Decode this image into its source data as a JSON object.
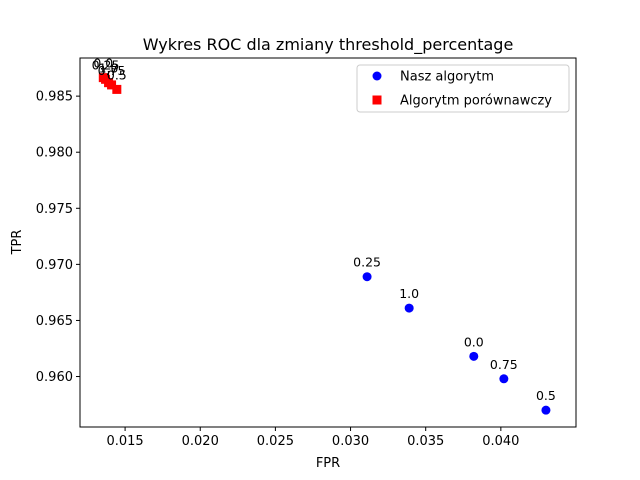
{
  "chart_data": {
    "type": "scatter",
    "title": "Wykres ROC dla zmiany threshold_percentage",
    "xlabel": "FPR",
    "ylabel": "TPR",
    "xlim": [
      0.012,
      0.045
    ],
    "ylim": [
      0.9555,
      0.9884
    ],
    "xticks": [
      0.015,
      0.02,
      0.025,
      0.03,
      0.035,
      0.04
    ],
    "xtick_labels": [
      "0.015",
      "0.020",
      "0.025",
      "0.030",
      "0.035",
      "0.040"
    ],
    "yticks": [
      0.96,
      0.965,
      0.97,
      0.975,
      0.98,
      0.985
    ],
    "ytick_labels": [
      "0.960",
      "0.965",
      "0.970",
      "0.975",
      "0.980",
      "0.985"
    ],
    "grid": false,
    "legend_position": "top-right",
    "series": [
      {
        "name": "Nasz algorytm",
        "marker": "circle",
        "color": "#0000ff",
        "points": [
          {
            "x": 0.0311,
            "y": 0.9689,
            "label": "0.25"
          },
          {
            "x": 0.0339,
            "y": 0.9661,
            "label": "1.0"
          },
          {
            "x": 0.0382,
            "y": 0.9618,
            "label": "0.0"
          },
          {
            "x": 0.0402,
            "y": 0.9598,
            "label": "0.75"
          },
          {
            "x": 0.043,
            "y": 0.957,
            "label": "0.5"
          }
        ]
      },
      {
        "name": "Algorytm porównawczy",
        "marker": "square",
        "color": "#ff0000",
        "points": [
          {
            "x": 0.01355,
            "y": 0.98665,
            "label": "0.0"
          },
          {
            "x": 0.0137,
            "y": 0.9865,
            "label": "0.25"
          },
          {
            "x": 0.0139,
            "y": 0.9862,
            "label": "1.0"
          },
          {
            "x": 0.0141,
            "y": 0.986,
            "label": "0.75"
          },
          {
            "x": 0.01445,
            "y": 0.9856,
            "label": "0.5"
          }
        ]
      }
    ]
  }
}
